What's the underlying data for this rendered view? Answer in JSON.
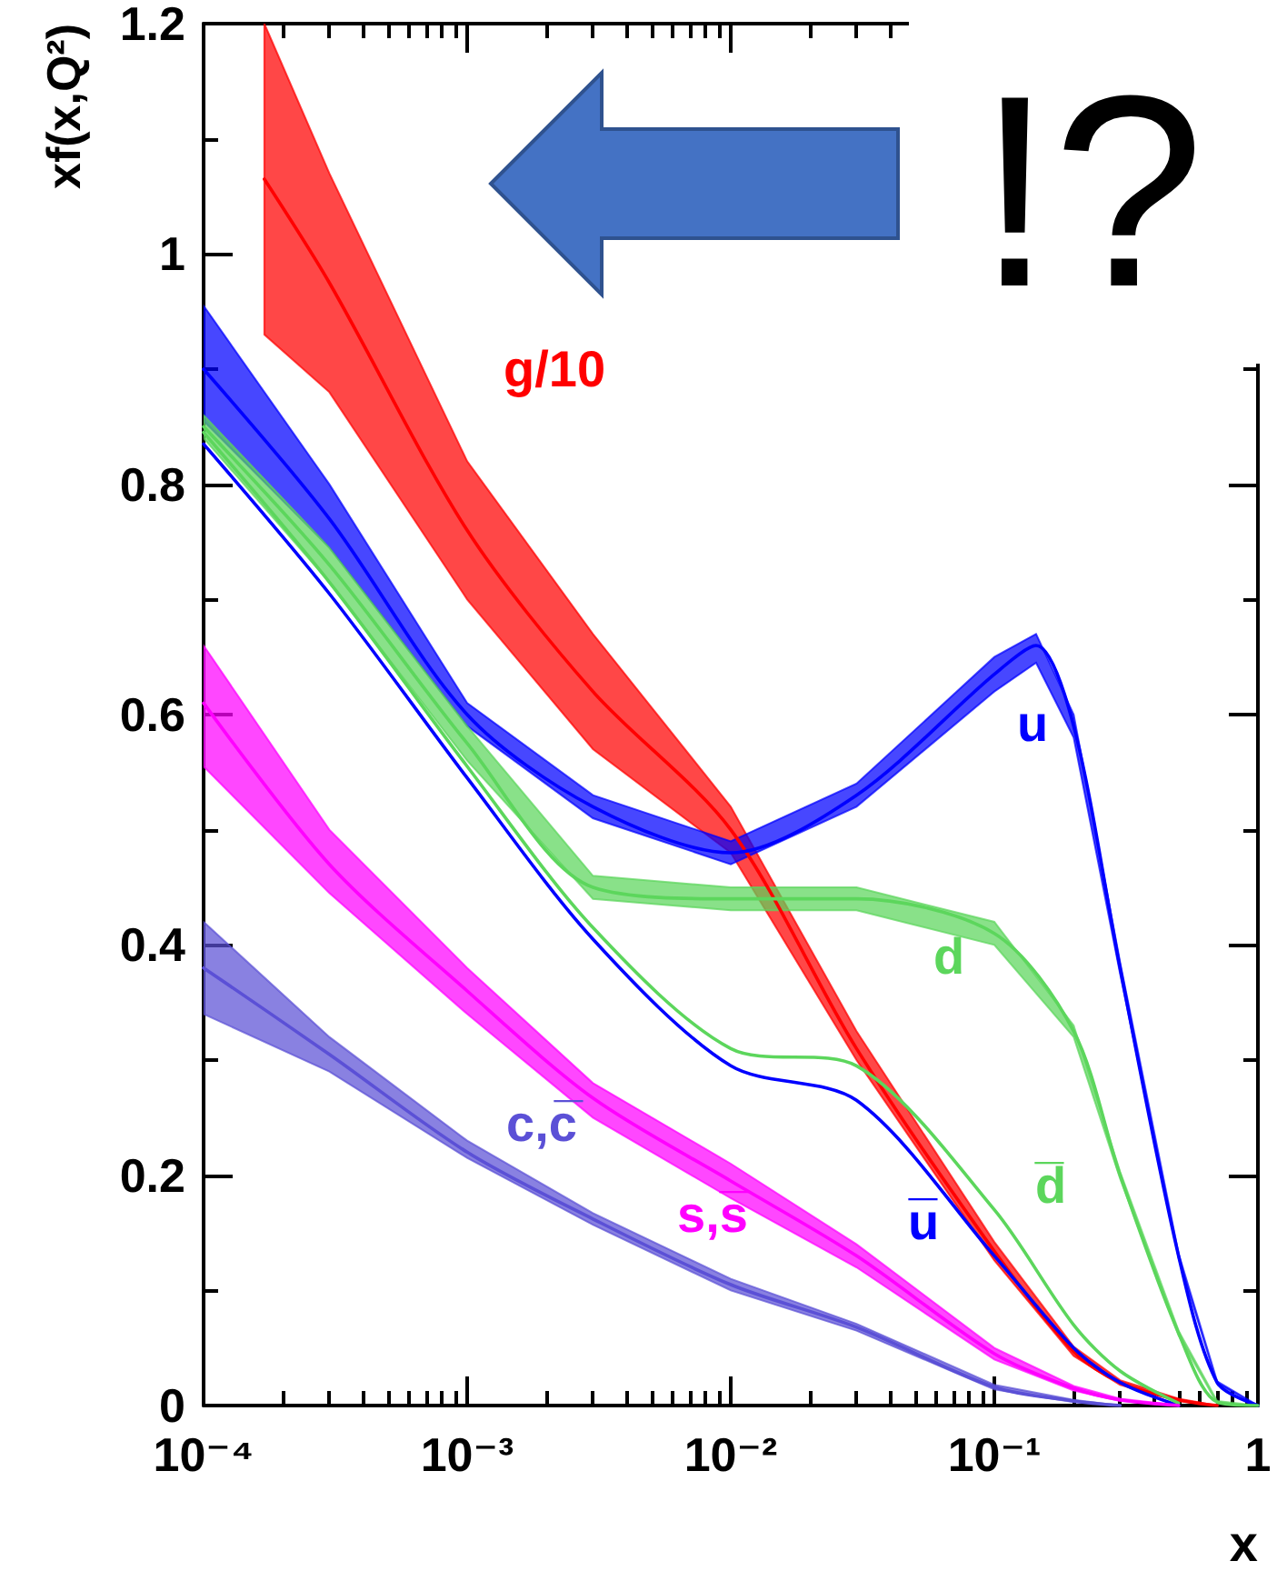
{
  "chart_data": {
    "type": "line",
    "xlabel": "x",
    "ylabel": "xf(x,Q²)",
    "log": "x",
    "xlim": [
      0.0001,
      1
    ],
    "ylim": [
      0,
      1.2
    ],
    "xticks": [
      {
        "value": 0.0001,
        "label": "10⁻⁴"
      },
      {
        "value": 0.001,
        "label": "10⁻³"
      },
      {
        "value": 0.01,
        "label": "10⁻²"
      },
      {
        "value": 0.1,
        "label": "10⁻¹"
      },
      1
    ],
    "yticks": [
      0,
      0.2,
      0.4,
      0.6,
      0.8,
      1,
      1.2
    ],
    "grid": false,
    "legend": false,
    "marker": "none",
    "line_style": "solid",
    "series": [
      {
        "name": "g/10",
        "color": "#ff0000",
        "x": [
          0.00017,
          0.0003,
          0.001,
          0.003,
          0.01,
          0.03,
          0.1,
          0.2,
          0.3,
          0.5,
          0.7
        ],
        "values": [
          1.065,
          0.975,
          0.76,
          0.62,
          0.5,
          0.31,
          0.134,
          0.047,
          0.02,
          0.005,
          0
        ],
        "lower": [
          0.93,
          0.88,
          0.7,
          0.57,
          0.48,
          0.3,
          0.126,
          0.043,
          0.018,
          0.004,
          0
        ],
        "upper": [
          1.2,
          1.07,
          0.82,
          0.67,
          0.52,
          0.325,
          0.142,
          0.051,
          0.022,
          0.006,
          0
        ]
      },
      {
        "name": "u",
        "color": "#0000ff",
        "x": [
          0.0001,
          0.0003,
          0.001,
          0.003,
          0.01,
          0.03,
          0.1,
          0.144,
          0.2,
          0.3,
          0.5,
          0.7,
          1
        ],
        "values": [
          0.9,
          0.77,
          0.6,
          0.52,
          0.48,
          0.53,
          0.635,
          0.66,
          0.59,
          0.38,
          0.13,
          0.02,
          0
        ],
        "lower": [
          0.855,
          0.745,
          0.59,
          0.51,
          0.47,
          0.52,
          0.62,
          0.645,
          0.58,
          0.375,
          0.128,
          0.019,
          0
        ],
        "upper": [
          0.955,
          0.8,
          0.61,
          0.53,
          0.49,
          0.54,
          0.65,
          0.67,
          0.6,
          0.385,
          0.132,
          0.021,
          0
        ]
      },
      {
        "name": "d",
        "color": "#5cd65c",
        "x": [
          0.0001,
          0.0003,
          0.001,
          0.003,
          0.01,
          0.03,
          0.1,
          0.2,
          0.3,
          0.5,
          0.7,
          1
        ],
        "values": [
          0.85,
          0.73,
          0.575,
          0.45,
          0.44,
          0.44,
          0.41,
          0.325,
          0.2,
          0.063,
          0.003,
          0
        ],
        "lower": [
          0.84,
          0.715,
          0.56,
          0.44,
          0.43,
          0.43,
          0.4,
          0.32,
          0.197,
          0.061,
          0.002,
          0
        ],
        "upper": [
          0.86,
          0.745,
          0.59,
          0.46,
          0.45,
          0.45,
          0.42,
          0.33,
          0.203,
          0.065,
          0.004,
          0
        ]
      },
      {
        "name": "u̅",
        "color": "#0000ff",
        "x": [
          0.0001,
          0.0003,
          0.001,
          0.003,
          0.01,
          0.03,
          0.1,
          0.2,
          0.3,
          0.5
        ],
        "values": [
          0.835,
          0.705,
          0.545,
          0.405,
          0.295,
          0.265,
          0.13,
          0.05,
          0.02,
          0
        ]
      },
      {
        "name": "d̅",
        "color": "#5cd65c",
        "x": [
          0.0001,
          0.0003,
          0.001,
          0.003,
          0.01,
          0.03,
          0.1,
          0.2,
          0.3,
          0.5
        ],
        "values": [
          0.845,
          0.715,
          0.555,
          0.415,
          0.31,
          0.295,
          0.17,
          0.07,
          0.03,
          0.002
        ]
      },
      {
        "name": "s,s̅",
        "color": "#ff00ff",
        "x": [
          0.0001,
          0.0003,
          0.001,
          0.003,
          0.01,
          0.03,
          0.1,
          0.2,
          0.3,
          0.5
        ],
        "values": [
          0.61,
          0.47,
          0.36,
          0.267,
          0.195,
          0.13,
          0.045,
          0.015,
          0.005,
          0
        ],
        "lower": [
          0.555,
          0.445,
          0.34,
          0.25,
          0.18,
          0.12,
          0.04,
          0.013,
          0.004,
          0
        ],
        "upper": [
          0.66,
          0.5,
          0.38,
          0.28,
          0.21,
          0.14,
          0.05,
          0.017,
          0.006,
          0
        ]
      },
      {
        "name": "c,c̅",
        "color": "#5b50d6",
        "x": [
          0.0001,
          0.0003,
          0.001,
          0.003,
          0.01,
          0.03,
          0.1,
          0.2,
          0.3
        ],
        "values": [
          0.38,
          0.305,
          0.22,
          0.162,
          0.105,
          0.068,
          0.016,
          0.004,
          0
        ],
        "lower": [
          0.34,
          0.29,
          0.215,
          0.157,
          0.1,
          0.065,
          0.014,
          0.003,
          0
        ],
        "upper": [
          0.42,
          0.32,
          0.23,
          0.167,
          0.11,
          0.071,
          0.018,
          0.005,
          0
        ]
      }
    ],
    "annotations": [
      "!?"
    ]
  }
}
